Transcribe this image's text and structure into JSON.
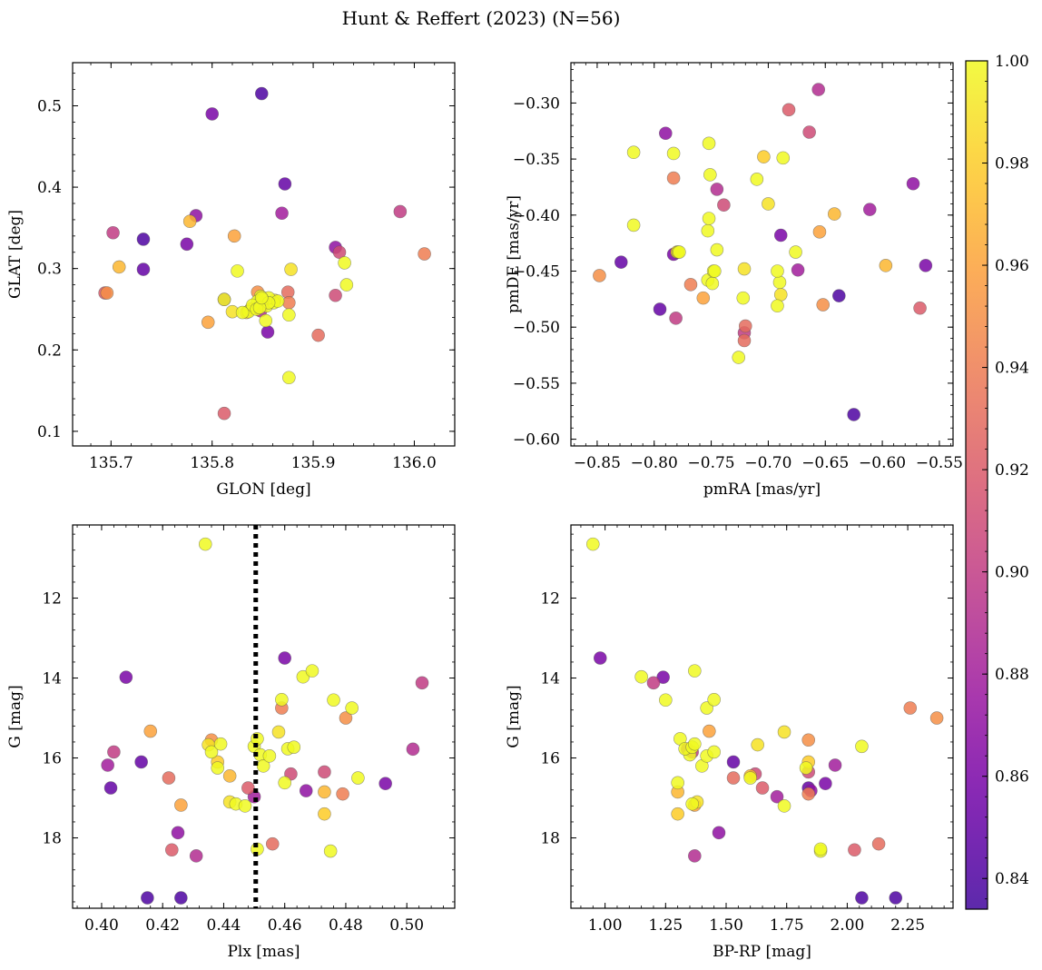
{
  "figure": {
    "title": "Hunt & Reffert (2023) (N=56)"
  },
  "colorbar": {
    "colormap": "plasma",
    "range": [
      0.834,
      1.0
    ],
    "ticks": [
      0.84,
      0.86,
      0.88,
      0.9,
      0.92,
      0.94,
      0.96,
      0.98,
      1.0
    ],
    "tick_labels": [
      "0.84",
      "0.86",
      "0.88",
      "0.90",
      "0.92",
      "0.94",
      "0.96",
      "0.98",
      "1.00"
    ]
  },
  "members": {
    "prob": [
      0.84,
      0.84,
      0.85,
      0.85,
      0.86,
      0.86,
      0.86,
      0.87,
      0.87,
      0.88,
      0.88,
      0.89,
      0.89,
      0.9,
      0.9,
      0.91,
      0.91,
      0.92,
      0.92,
      0.93,
      0.93,
      0.94,
      0.94,
      0.95,
      0.95,
      0.96,
      0.96,
      0.97,
      0.97,
      0.98,
      0.98,
      0.99,
      0.99,
      0.99,
      1.0,
      1.0,
      1.0,
      1.0,
      1.0,
      1.0,
      1.0,
      1.0,
      1.0,
      1.0,
      1.0,
      1.0,
      1.0,
      1.0,
      1.0,
      1.0,
      1.0,
      1.0,
      1.0,
      1.0,
      1.0,
      1.0
    ],
    "glon": [
      135.849,
      135.732,
      135.732,
      135.872,
      135.8,
      135.855,
      135.775,
      135.922,
      135.784,
      135.869,
      135.812,
      135.853,
      135.848,
      135.986,
      135.702,
      135.926,
      135.922,
      135.812,
      135.694,
      135.875,
      135.905,
      136.01,
      135.876,
      135.696,
      135.845,
      135.822,
      135.796,
      135.778,
      135.708,
      135.834,
      135.838,
      135.878,
      135.862,
      135.82,
      135.853,
      135.876,
      135.931,
      135.848,
      135.933,
      135.825,
      135.848,
      135.812,
      135.836,
      135.854,
      135.861,
      135.856,
      135.876,
      135.845,
      135.85,
      135.84,
      135.865,
      135.844,
      135.856,
      135.847,
      135.849,
      135.83
    ],
    "glat": [
      0.515,
      0.336,
      0.299,
      0.404,
      0.49,
      0.222,
      0.33,
      0.326,
      0.365,
      0.368,
      0.262,
      0.258,
      0.248,
      0.37,
      0.344,
      0.32,
      0.267,
      0.122,
      0.27,
      0.271,
      0.218,
      0.318,
      0.258,
      0.27,
      0.271,
      0.34,
      0.234,
      0.358,
      0.302,
      0.246,
      0.25,
      0.299,
      0.261,
      0.247,
      0.236,
      0.166,
      0.307,
      0.262,
      0.28,
      0.297,
      0.266,
      0.262,
      0.247,
      0.254,
      0.258,
      0.264,
      0.243,
      0.26,
      0.262,
      0.255,
      0.26,
      0.25,
      0.258,
      0.252,
      0.264,
      0.246
    ],
    "pmra": [
      -0.625,
      -0.638,
      -0.829,
      -0.795,
      -0.689,
      -0.783,
      -0.562,
      -0.573,
      -0.79,
      -0.611,
      -0.674,
      -0.745,
      -0.656,
      -0.781,
      -0.721,
      -0.664,
      -0.739,
      -0.682,
      -0.567,
      -0.72,
      -0.721,
      -0.768,
      -0.783,
      -0.652,
      -0.848,
      -0.757,
      -0.655,
      -0.597,
      -0.642,
      -0.78,
      -0.704,
      -0.689,
      -0.7,
      -0.721,
      -0.752,
      -0.818,
      -0.783,
      -0.753,
      -0.779,
      -0.751,
      -0.722,
      -0.726,
      -0.749,
      -0.692,
      -0.818,
      -0.748,
      -0.69,
      -0.753,
      -0.676,
      -0.687,
      -0.71,
      -0.747,
      -0.692,
      -0.778,
      -0.745,
      -0.752
    ],
    "pmde": [
      -0.578,
      -0.472,
      -0.442,
      -0.484,
      -0.418,
      -0.435,
      -0.445,
      -0.372,
      -0.327,
      -0.395,
      -0.449,
      -0.377,
      -0.288,
      -0.492,
      -0.505,
      -0.326,
      -0.391,
      -0.306,
      -0.483,
      -0.499,
      -0.512,
      -0.462,
      -0.367,
      -0.48,
      -0.454,
      -0.474,
      -0.415,
      -0.445,
      -0.399,
      -0.433,
      -0.348,
      -0.471,
      -0.39,
      -0.448,
      -0.336,
      -0.344,
      -0.345,
      -0.458,
      -0.433,
      -0.364,
      -0.474,
      -0.527,
      -0.461,
      -0.481,
      -0.409,
      -0.45,
      -0.46,
      -0.414,
      -0.433,
      -0.349,
      -0.368,
      -0.45,
      -0.45,
      -0.433,
      -0.431,
      -0.403
    ],
    "plx": [
      0.426,
      0.415,
      0.403,
      0.413,
      0.46,
      0.408,
      0.493,
      0.467,
      0.425,
      0.402,
      0.45,
      0.502,
      0.431,
      0.505,
      0.404,
      0.462,
      0.473,
      0.423,
      0.448,
      0.422,
      0.456,
      0.479,
      0.459,
      0.48,
      0.436,
      0.416,
      0.426,
      0.442,
      0.473,
      0.473,
      0.438,
      0.458,
      0.435,
      0.442,
      0.45,
      0.466,
      0.476,
      0.46,
      0.484,
      0.438,
      0.469,
      0.475,
      0.482,
      0.459,
      0.444,
      0.451,
      0.452,
      0.453,
      0.455,
      0.436,
      0.461,
      0.463,
      0.439,
      0.447,
      0.451,
      0.434
    ],
    "g": [
      19.5,
      19.5,
      16.75,
      16.1,
      13.5,
      13.98,
      16.64,
      16.82,
      17.87,
      16.18,
      16.97,
      15.78,
      18.45,
      14.12,
      15.85,
      16.4,
      16.35,
      18.3,
      16.75,
      16.5,
      18.15,
      16.9,
      14.75,
      15.0,
      15.55,
      15.33,
      17.18,
      16.45,
      16.85,
      17.4,
      16.1,
      15.35,
      15.67,
      17.1,
      15.71,
      13.97,
      14.55,
      16.62,
      16.5,
      16.25,
      13.82,
      18.33,
      14.75,
      14.54,
      17.15,
      15.52,
      15.92,
      16.2,
      15.95,
      15.85,
      15.77,
      15.73,
      15.65,
      17.2,
      18.28,
      10.65
    ],
    "bp_rp": [
      2.06,
      2.2,
      1.84,
      1.53,
      0.98,
      1.24,
      1.91,
      1.85,
      1.47,
      1.95,
      1.71,
      1.34,
      1.37,
      1.2,
      1.36,
      1.62,
      1.84,
      2.03,
      1.65,
      1.53,
      2.13,
      1.84,
      2.26,
      2.37,
      1.84,
      1.43,
      1.37,
      1.6,
      1.3,
      1.3,
      1.84,
      1.74,
      1.63,
      1.38,
      2.06,
      1.15,
      1.25,
      1.3,
      1.6,
      1.83,
      1.37,
      1.89,
      1.42,
      1.45,
      1.36,
      1.31,
      1.35,
      1.4,
      1.42,
      1.45,
      1.33,
      1.36,
      1.37,
      1.74,
      1.89,
      0.95
    ]
  },
  "chart_data": [
    {
      "type": "scatter",
      "xlabel": "GLON [deg]",
      "ylabel": "GLAT [deg]",
      "x_field": "glon",
      "y_field": "glat",
      "xlim": [
        135.662,
        136.04
      ],
      "ylim": [
        0.082,
        0.553
      ],
      "xticks": [
        135.7,
        135.8,
        135.9,
        136.0
      ],
      "xtick_labels": [
        "135.7",
        "135.8",
        "135.9",
        "136.0"
      ],
      "yticks": [
        0.1,
        0.2,
        0.3,
        0.4,
        0.5
      ],
      "ytick_labels": [
        "0.1",
        "0.2",
        "0.3",
        "0.4",
        "0.5"
      ],
      "color_field": "prob"
    },
    {
      "type": "scatter",
      "xlabel": "pmRA [mas/yr]",
      "ylabel": "pmDE [mas/yr]",
      "x_field": "pmra",
      "y_field": "pmde",
      "xlim": [
        -0.873,
        -0.538
      ],
      "ylim": [
        -0.606,
        -0.264
      ],
      "xticks": [
        -0.85,
        -0.8,
        -0.75,
        -0.7,
        -0.65,
        -0.6,
        -0.55
      ],
      "xtick_labels": [
        "−0.85",
        "−0.80",
        "−0.75",
        "−0.70",
        "−0.65",
        "−0.60",
        "−0.55"
      ],
      "yticks": [
        -0.6,
        -0.55,
        -0.5,
        -0.45,
        -0.4,
        -0.35,
        -0.3
      ],
      "ytick_labels": [
        "−0.60",
        "−0.55",
        "−0.50",
        "−0.45",
        "−0.40",
        "−0.35",
        "−0.30"
      ],
      "color_field": "prob"
    },
    {
      "type": "scatter",
      "xlabel": "Plx [mas]",
      "ylabel": "G [mag]",
      "x_field": "plx",
      "y_field": "g",
      "xlim": [
        0.3905,
        0.5157
      ],
      "ylim": [
        19.76,
        10.17
      ],
      "xticks": [
        0.4,
        0.42,
        0.44,
        0.46,
        0.48,
        0.5
      ],
      "xtick_labels": [
        "0.40",
        "0.42",
        "0.44",
        "0.46",
        "0.48",
        "0.50"
      ],
      "yticks": [
        12,
        14,
        16,
        18
      ],
      "ytick_labels": [
        "12",
        "14",
        "16",
        "18"
      ],
      "color_field": "prob",
      "reference_line": {
        "axis": "x",
        "value": 0.4505,
        "style": "dotted"
      }
    },
    {
      "type": "scatter",
      "xlabel": "BP-RP [mag]",
      "ylabel": "G [mag]",
      "x_field": "bp_rp",
      "y_field": "g",
      "xlim": [
        0.859,
        2.437
      ],
      "ylim": [
        19.76,
        10.17
      ],
      "xticks": [
        1.0,
        1.25,
        1.5,
        1.75,
        2.0,
        2.25
      ],
      "xtick_labels": [
        "1.00",
        "1.25",
        "1.50",
        "1.75",
        "2.00",
        "2.25"
      ],
      "yticks": [
        12,
        14,
        16,
        18
      ],
      "ytick_labels": [
        "12",
        "14",
        "16",
        "18"
      ],
      "color_field": "prob"
    }
  ]
}
